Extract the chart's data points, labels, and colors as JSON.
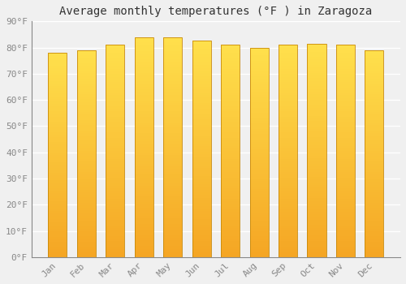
{
  "title": "Average monthly temperatures (°F ) in Zaragoza",
  "months": [
    "Jan",
    "Feb",
    "Mar",
    "Apr",
    "May",
    "Jun",
    "Jul",
    "Aug",
    "Sep",
    "Oct",
    "Nov",
    "Dec"
  ],
  "values": [
    78,
    79,
    81,
    84,
    84,
    82.5,
    81,
    80,
    81,
    81.5,
    81,
    79
  ],
  "bar_color_bottom": "#F5A623",
  "bar_color_top": "#FFD84D",
  "bar_edge_color": "#C8890A",
  "background_color": "#f0f0f0",
  "grid_color": "#ffffff",
  "ylim": [
    0,
    90
  ],
  "yticks": [
    0,
    10,
    20,
    30,
    40,
    50,
    60,
    70,
    80,
    90
  ],
  "ytick_labels": [
    "0°F",
    "10°F",
    "20°F",
    "30°F",
    "40°F",
    "50°F",
    "60°F",
    "70°F",
    "80°F",
    "90°F"
  ],
  "title_fontsize": 10,
  "tick_fontsize": 8,
  "font_family": "monospace",
  "bar_width": 0.65,
  "n_grad": 80
}
